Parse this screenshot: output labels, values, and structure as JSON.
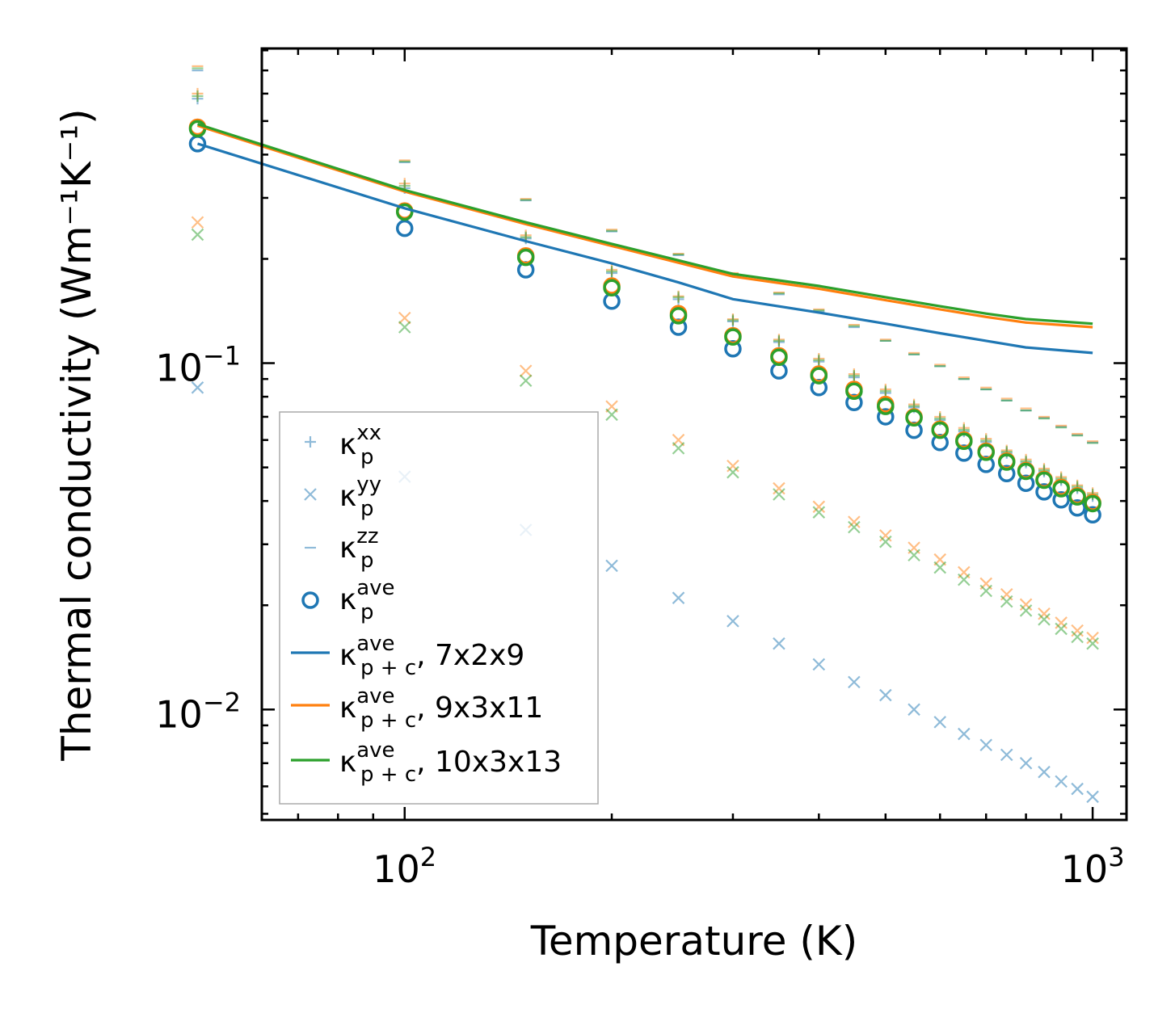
{
  "chart_data": {
    "type": "scatter",
    "title": "",
    "xlabel": "Temperature (K)",
    "ylabel": "Thermal conductivity (Wm⁻¹K⁻¹)",
    "xscale": "log",
    "yscale": "log",
    "xlim": [
      62,
      1120
    ],
    "ylim": [
      0.0048,
      0.81
    ],
    "x_ticks": [
      {
        "base": "10",
        "exp": "2",
        "value": 100
      },
      {
        "base": "10",
        "exp": "3",
        "value": 1000
      }
    ],
    "y_ticks": [
      {
        "base": "10",
        "exp": "−2",
        "value": 0.01
      },
      {
        "base": "10",
        "exp": "−1",
        "value": 0.1
      }
    ],
    "temperature": [
      50,
      100,
      150,
      200,
      250,
      300,
      350,
      400,
      450,
      500,
      550,
      600,
      650,
      700,
      750,
      800,
      850,
      900,
      950,
      1000
    ],
    "colors": {
      "blue": "#1f77b4",
      "orange": "#ff7f0e",
      "green": "#2ca02c"
    },
    "series": [
      {
        "name": "kp_xx 7x2x9",
        "marker": "plus",
        "color": "#1f77b4",
        "alpha": 0.5,
        "values": [
          0.58,
          0.32,
          0.229,
          0.182,
          0.153,
          0.132,
          0.115,
          0.101,
          0.091,
          0.082,
          0.0745,
          0.0685,
          0.0635,
          0.0592,
          0.055,
          0.0516,
          0.0486,
          0.0459,
          0.0435,
          0.0413
        ]
      },
      {
        "name": "kp_xx 9x3x11",
        "marker": "plus",
        "color": "#ff7f0e",
        "alpha": 0.5,
        "values": [
          0.6,
          0.33,
          0.234,
          0.186,
          0.156,
          0.134,
          0.117,
          0.103,
          0.093,
          0.084,
          0.076,
          0.07,
          0.065,
          0.0605,
          0.056,
          0.0527,
          0.0496,
          0.0469,
          0.0444,
          0.0422
        ]
      },
      {
        "name": "kp_xx 10x3x13",
        "marker": "plus",
        "color": "#2ca02c",
        "alpha": 0.5,
        "values": [
          0.59,
          0.325,
          0.231,
          0.184,
          0.155,
          0.133,
          0.116,
          0.102,
          0.092,
          0.083,
          0.0752,
          0.0692,
          0.0642,
          0.0598,
          0.0555,
          0.0521,
          0.0491,
          0.0464,
          0.044,
          0.0418
        ]
      },
      {
        "name": "kp_yy 7x2x9",
        "marker": "x",
        "color": "#1f77b4",
        "alpha": 0.5,
        "values": [
          0.085,
          0.047,
          0.033,
          0.026,
          0.021,
          0.018,
          0.0155,
          0.0135,
          0.012,
          0.011,
          0.01,
          0.0092,
          0.0085,
          0.0079,
          0.0074,
          0.007,
          0.0066,
          0.0062,
          0.0059,
          0.0056
        ]
      },
      {
        "name": "kp_yy 9x3x11",
        "marker": "x",
        "color": "#ff7f0e",
        "alpha": 0.5,
        "values": [
          0.255,
          0.135,
          0.095,
          0.075,
          0.06,
          0.0505,
          0.0435,
          0.0385,
          0.0348,
          0.0318,
          0.0293,
          0.0271,
          0.0249,
          0.0231,
          0.0215,
          0.0201,
          0.0189,
          0.0178,
          0.0169,
          0.0161
        ]
      },
      {
        "name": "kp_yy 10x3x13",
        "marker": "x",
        "color": "#2ca02c",
        "alpha": 0.5,
        "values": [
          0.235,
          0.127,
          0.089,
          0.071,
          0.0568,
          0.0484,
          0.0418,
          0.0371,
          0.0336,
          0.0305,
          0.0279,
          0.0257,
          0.0237,
          0.022,
          0.0205,
          0.0193,
          0.0182,
          0.0171,
          0.0162,
          0.0155
        ]
      },
      {
        "name": "kp_zz 7x2x9",
        "marker": "dash",
        "color": "#1f77b4",
        "alpha": 0.5,
        "values": [
          0.7,
          0.38,
          0.295,
          0.24,
          0.205,
          0.18,
          0.158,
          0.141,
          0.127,
          0.116,
          0.106,
          0.098,
          0.09,
          0.084,
          0.078,
          0.073,
          0.0695,
          0.0655,
          0.062,
          0.059
        ]
      },
      {
        "name": "kp_zz 9x3x11",
        "marker": "dash",
        "color": "#ff7f0e",
        "alpha": 0.5,
        "values": [
          0.72,
          0.385,
          0.298,
          0.243,
          0.207,
          0.182,
          0.16,
          0.143,
          0.129,
          0.117,
          0.107,
          0.099,
          0.091,
          0.085,
          0.079,
          0.074,
          0.07,
          0.066,
          0.0625,
          0.0595
        ]
      },
      {
        "name": "kp_zz 10x3x13",
        "marker": "dash",
        "color": "#2ca02c",
        "alpha": 0.5,
        "values": [
          0.71,
          0.382,
          0.296,
          0.241,
          0.206,
          0.181,
          0.159,
          0.142,
          0.128,
          0.116,
          0.106,
          0.098,
          0.09,
          0.084,
          0.078,
          0.073,
          0.0692,
          0.0652,
          0.0618,
          0.0588
        ]
      },
      {
        "name": "kp_ave 7x2x9",
        "marker": "circle",
        "color": "#1f77b4",
        "alpha": 1.0,
        "values": [
          0.43,
          0.245,
          0.186,
          0.151,
          0.127,
          0.11,
          0.095,
          0.085,
          0.077,
          0.07,
          0.064,
          0.059,
          0.055,
          0.051,
          0.048,
          0.045,
          0.0425,
          0.0403,
          0.0382,
          0.0365
        ]
      },
      {
        "name": "kp_ave 9x3x11",
        "marker": "circle",
        "color": "#ff7f0e",
        "alpha": 1.0,
        "values": [
          0.48,
          0.275,
          0.204,
          0.167,
          0.139,
          0.12,
          0.105,
          0.093,
          0.084,
          0.076,
          0.07,
          0.0645,
          0.06,
          0.0557,
          0.0522,
          0.049,
          0.0462,
          0.0438,
          0.0414,
          0.0396
        ]
      },
      {
        "name": "kp_ave 10x3x13",
        "marker": "circle",
        "color": "#2ca02c",
        "alpha": 1.0,
        "values": [
          0.475,
          0.273,
          0.202,
          0.165,
          0.137,
          0.119,
          0.104,
          0.092,
          0.083,
          0.075,
          0.0695,
          0.064,
          0.0595,
          0.0553,
          0.0518,
          0.0487,
          0.0459,
          0.0434,
          0.0411,
          0.0393
        ]
      },
      {
        "name": "kp+c_ave 7x2x9",
        "marker": "line",
        "color": "#1f77b4",
        "alpha": 1.0,
        "values": [
          0.43,
          0.28,
          0.225,
          0.194,
          0.171,
          0.153,
          0.14,
          0.13,
          0.122,
          0.116,
          0.111,
          0.107
        ]
      },
      {
        "name": "kp+c_ave 9x3x11",
        "marker": "line",
        "color": "#ff7f0e",
        "alpha": 1.0,
        "values": [
          0.485,
          0.313,
          0.252,
          0.218,
          0.195,
          0.178,
          0.164,
          0.152,
          0.143,
          0.136,
          0.131,
          0.127
        ]
      },
      {
        "name": "kp+c_ave 10x3x13",
        "marker": "line",
        "color": "#2ca02c",
        "alpha": 1.0,
        "values": [
          0.49,
          0.316,
          0.255,
          0.221,
          0.198,
          0.181,
          0.167,
          0.155,
          0.146,
          0.139,
          0.134,
          0.13
        ]
      }
    ],
    "line_temperature": [
      50,
      100,
      150,
      200,
      250,
      300,
      400,
      500,
      600,
      700,
      800,
      1000
    ],
    "legend": {
      "position": "lower-left",
      "entries": [
        {
          "marker": "plus",
          "color": "#1f77b4",
          "alpha": 0.5,
          "base": "κ",
          "sub": "p",
          "sup": "xx",
          "suffix": ""
        },
        {
          "marker": "x",
          "color": "#1f77b4",
          "alpha": 0.5,
          "base": "κ",
          "sub": "p",
          "sup": "yy",
          "suffix": ""
        },
        {
          "marker": "dash",
          "color": "#1f77b4",
          "alpha": 0.5,
          "base": "κ",
          "sub": "p",
          "sup": "zz",
          "suffix": ""
        },
        {
          "marker": "circle",
          "color": "#1f77b4",
          "alpha": 1.0,
          "base": "κ",
          "sub": "p",
          "sup": "ave",
          "suffix": ""
        },
        {
          "marker": "line",
          "color": "#1f77b4",
          "alpha": 1.0,
          "base": "κ",
          "sub": "p + c",
          "sup": "ave",
          "suffix": ", 7x2x9"
        },
        {
          "marker": "line",
          "color": "#ff7f0e",
          "alpha": 1.0,
          "base": "κ",
          "sub": "p + c",
          "sup": "ave",
          "suffix": ", 9x3x11"
        },
        {
          "marker": "line",
          "color": "#2ca02c",
          "alpha": 1.0,
          "base": "κ",
          "sub": "p + c",
          "sup": "ave",
          "suffix": ", 10x3x13"
        }
      ]
    }
  }
}
